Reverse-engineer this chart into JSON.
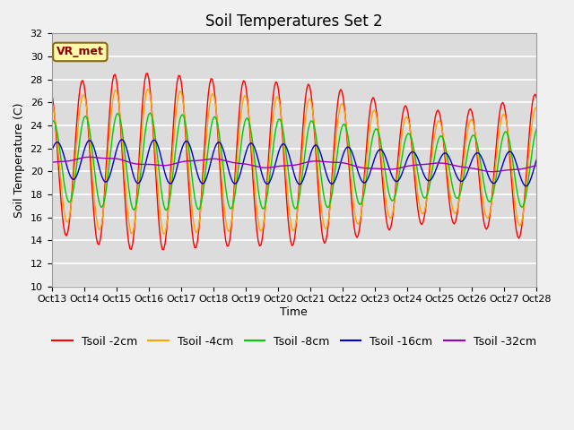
{
  "title": "Soil Temperatures Set 2",
  "xlabel": "Time",
  "ylabel": "Soil Temperature (C)",
  "ylim": [
    10,
    32
  ],
  "n_days": 15,
  "x_tick_labels": [
    "Oct 13",
    "Oct 14",
    "Oct 15",
    "Oct 16",
    "Oct 17",
    "Oct 18",
    "Oct 19",
    "Oct 20",
    "Oct 21",
    "Oct 22",
    "Oct 23",
    "Oct 24",
    "Oct 25",
    "Oct 26",
    "Oct 27",
    "Oct 28"
  ],
  "series": [
    {
      "label": "Tsoil -2cm",
      "color": "#FF0000",
      "depth_cm": 2
    },
    {
      "label": "Tsoil -4cm",
      "color": "#FFA500",
      "depth_cm": 4
    },
    {
      "label": "Tsoil -8cm",
      "color": "#00CC00",
      "depth_cm": 8
    },
    {
      "label": "Tsoil -16cm",
      "color": "#0000CC",
      "depth_cm": 16
    },
    {
      "label": "Tsoil -32cm",
      "color": "#9900BB",
      "depth_cm": 32
    }
  ],
  "annotation_text": "VR_met",
  "background_color": "#DCDCDC",
  "grid_color": "#FFFFFF",
  "fig_bg_color": "#F0F0F0",
  "title_fontsize": 12,
  "axis_fontsize": 9,
  "tick_fontsize": 8,
  "legend_fontsize": 9
}
